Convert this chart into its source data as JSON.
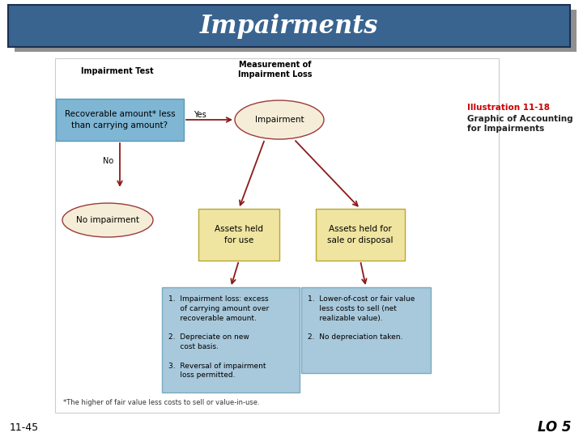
{
  "title": "Impairments",
  "title_bg": "#3A6490",
  "title_shadow": "#1a1a2e",
  "title_color": "#FFFFFF",
  "page_num": "11-45",
  "lo": "LO 5",
  "illustration_label": "Illustration 11-18",
  "illustration_desc": "Graphic of Accounting\nfor Impairments",
  "impairment_test_label": "Impairment Test",
  "measurement_label": "Measurement of\nImpairment Loss",
  "recoverable_box_text": "Recoverable amount* less\nthan carrying amount?",
  "recoverable_box_color": "#7EB6D4",
  "recoverable_box_border": "#5A9AB8",
  "impairment_ellipse_text": "Impairment",
  "impairment_ellipse_color": "#F5EDD8",
  "impairment_ellipse_border": "#9B3A3A",
  "no_impairment_ellipse_text": "No impairment",
  "no_impairment_ellipse_color": "#F5EDD8",
  "no_impairment_ellipse_border": "#9B3A3A",
  "assets_held_use_text": "Assets held\nfor use",
  "assets_held_disposal_text": "Assets held for\nsale or disposal",
  "assets_box_color": "#EFE4A0",
  "assets_box_border": "#B8A830",
  "use_details_text": "1.  Impairment loss: excess\n     of carrying amount over\n     recoverable amount.\n\n2.  Depreciate on new\n     cost basis.\n\n3.  Reversal of impairment\n     loss permitted.",
  "disposal_details_text": "1.  Lower-of-cost or fair value\n     less costs to sell (net\n     realizable value).\n\n2.  No depreciation taken.",
  "details_box_color": "#A8C8DC",
  "details_box_border": "#7AAAC0",
  "footnote": "*The higher of fair value less costs to sell or value-in-use.",
  "arrow_color": "#8B1A1A",
  "yes_label": "Yes",
  "no_label": "No",
  "bg_color": "#FFFFFF",
  "diagram_bg": "#FFFFFF",
  "diagram_border": "#CCCCCC"
}
